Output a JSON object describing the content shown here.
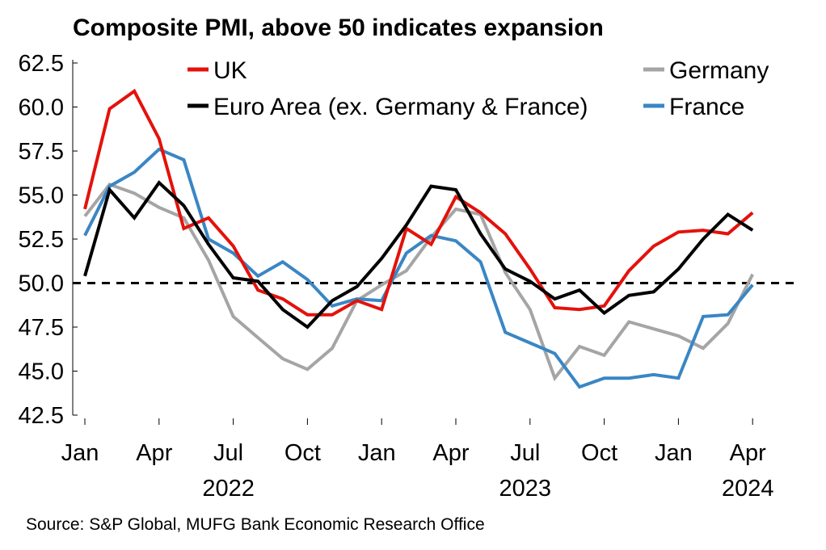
{
  "chart_data": {
    "type": "line",
    "title": "Composite PMI, above 50 indicates  expansion",
    "source": "Source: S&P Global, MUFG Bank Economic Research Office",
    "ylim": [
      42.5,
      62.5
    ],
    "yticks": [
      "62.5",
      "60.0",
      "57.5",
      "55.0",
      "52.5",
      "50.0",
      "47.5",
      "45.0",
      "42.5"
    ],
    "x_month_labels": [
      "Jan",
      "Apr",
      "Jul",
      "Oct",
      "Jan",
      "Apr",
      "Jul",
      "Oct",
      "Jan",
      "Apr"
    ],
    "x_year_labels": [
      "2022",
      "2023",
      "2024"
    ],
    "reference_line": 50,
    "grid": false,
    "legend_position": "top",
    "x": [
      "2022-01",
      "2022-02",
      "2022-03",
      "2022-04",
      "2022-05",
      "2022-06",
      "2022-07",
      "2022-08",
      "2022-09",
      "2022-10",
      "2022-11",
      "2022-12",
      "2023-01",
      "2023-02",
      "2023-03",
      "2023-04",
      "2023-05",
      "2023-06",
      "2023-07",
      "2023-08",
      "2023-09",
      "2023-10",
      "2023-11",
      "2023-12",
      "2024-01",
      "2024-02",
      "2024-03",
      "2024-04"
    ],
    "series": [
      {
        "name": "UK",
        "color": "#e3120b",
        "values": [
          54.2,
          59.9,
          60.9,
          58.2,
          53.1,
          53.7,
          52.1,
          49.6,
          49.1,
          48.2,
          48.2,
          49.0,
          48.5,
          53.1,
          52.2,
          54.9,
          54.0,
          52.8,
          50.8,
          48.6,
          48.5,
          48.7,
          50.7,
          52.1,
          52.9,
          53.0,
          52.8,
          54.0
        ]
      },
      {
        "name": "Germany",
        "color": "#a5a5a5",
        "values": [
          53.8,
          55.6,
          55.1,
          54.3,
          53.7,
          51.3,
          48.1,
          46.9,
          45.7,
          45.1,
          46.3,
          49.0,
          49.9,
          50.7,
          52.6,
          54.2,
          53.9,
          50.6,
          48.5,
          44.6,
          46.4,
          45.9,
          47.8,
          47.4,
          47.0,
          46.3,
          47.7,
          50.5
        ]
      },
      {
        "name": "Euro Area (ex. Germany & France)",
        "color": "#000000",
        "values": [
          50.4,
          55.3,
          53.7,
          55.7,
          54.4,
          52.2,
          50.3,
          50.1,
          48.5,
          47.5,
          49.0,
          49.8,
          51.4,
          53.3,
          55.5,
          55.3,
          52.8,
          50.8,
          50.1,
          49.1,
          49.6,
          48.3,
          49.3,
          49.5,
          50.8,
          52.5,
          53.9,
          53.0
        ]
      },
      {
        "name": "France",
        "color": "#3a86c4",
        "values": [
          52.7,
          55.5,
          56.3,
          57.6,
          57.0,
          52.5,
          51.7,
          50.4,
          51.2,
          50.2,
          48.7,
          49.1,
          49.0,
          51.7,
          52.7,
          52.4,
          51.2,
          47.2,
          46.6,
          46.0,
          44.1,
          44.6,
          44.6,
          44.8,
          44.6,
          48.1,
          48.2,
          49.9
        ]
      }
    ]
  }
}
